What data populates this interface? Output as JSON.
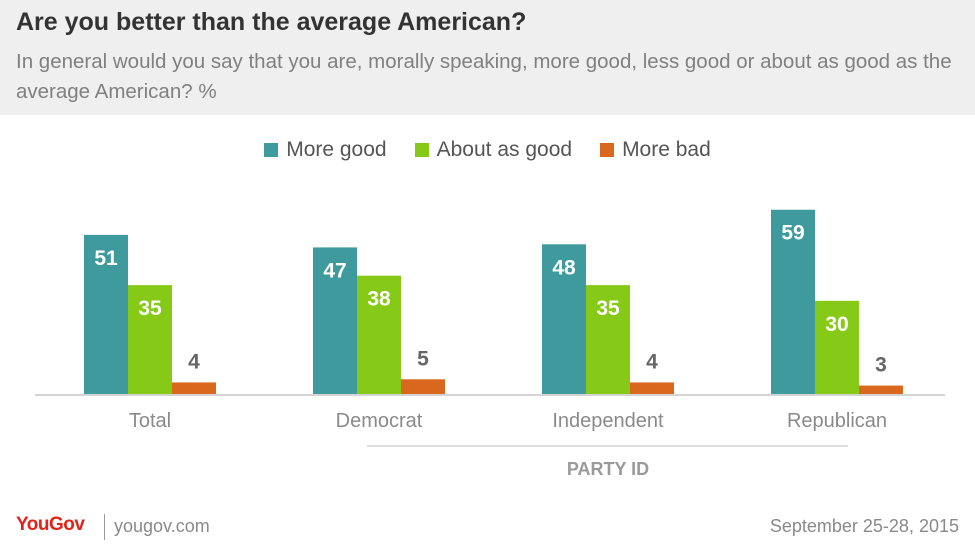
{
  "header": {
    "title": "Are you better than the average American?",
    "subtitle": "In general would you say that you are, morally speaking, more good, less good or about as good as the average American? %"
  },
  "chart_data": {
    "type": "bar",
    "categories": [
      "Total",
      "Democrat",
      "Independent",
      "Republican"
    ],
    "series": [
      {
        "name": "More good",
        "values": [
          51,
          47,
          48,
          59
        ],
        "color": "#3f9a9e"
      },
      {
        "name": "About as good",
        "values": [
          35,
          38,
          35,
          30
        ],
        "color": "#86c916"
      },
      {
        "name": "More bad",
        "values": [
          4,
          5,
          4,
          3
        ],
        "color": "#d9671e"
      }
    ],
    "group_label": "PARTY ID",
    "ylim": [
      0,
      60
    ],
    "legend_position": "top-center",
    "grid": false
  },
  "footer": {
    "brand": "YouGov",
    "site": "yougov.com",
    "date": "September 25-28, 2015"
  }
}
